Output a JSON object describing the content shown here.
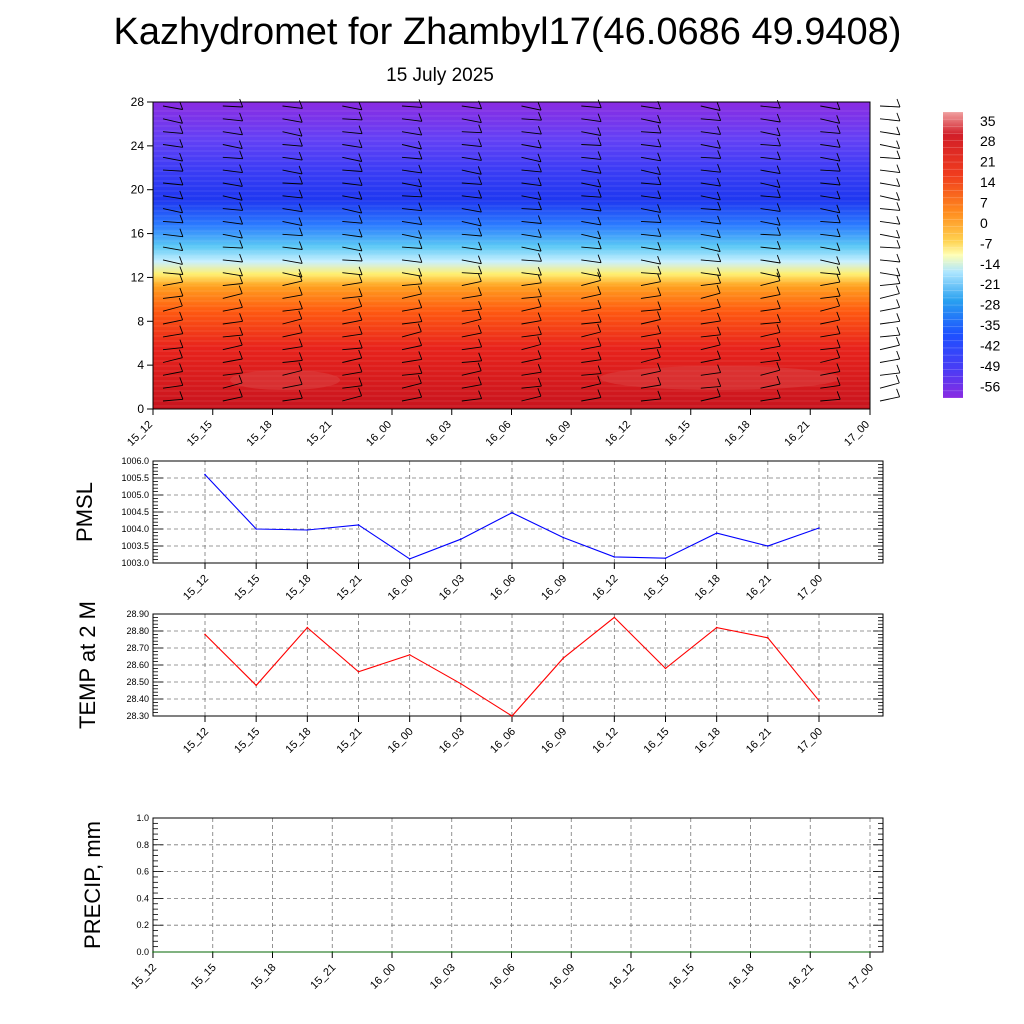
{
  "header": {
    "title": "Kazhydromet for Zhambyl17(46.0686 49.9408)",
    "subtitle": "15 July 2025"
  },
  "colors": {
    "pmsl_line": "#0000ff",
    "temp_line": "#ff0000",
    "precip_line": "#006400",
    "grid": "#777777"
  },
  "chart_data": [
    {
      "type": "heatmap",
      "name": "upper-air temperature and wind",
      "title": "",
      "xlabel": "",
      "ylabel": "",
      "x_ticks": [
        "15_12",
        "15_15",
        "15_18",
        "15_21",
        "16_00",
        "16_03",
        "16_06",
        "16_09",
        "16_12",
        "16_15",
        "16_18",
        "16_21",
        "17_00"
      ],
      "y_ticks": [
        0,
        4,
        8,
        12,
        16,
        20,
        24,
        28
      ],
      "ylim": [
        0,
        28
      ],
      "colorbar": {
        "labels": [
          35,
          28,
          21,
          14,
          7,
          0,
          -7,
          -14,
          -21,
          -28,
          -35,
          -42,
          -49,
          -56
        ],
        "range": [
          -60,
          38
        ]
      },
      "overlay": "wind barbs"
    },
    {
      "type": "line",
      "name": "PMSL",
      "ylabel": "PMSL",
      "categories": [
        "15_12",
        "15_15",
        "15_18",
        "15_21",
        "16_00",
        "16_03",
        "16_06",
        "16_09",
        "16_12",
        "16_15",
        "16_18",
        "16_21",
        "17_00"
      ],
      "values": [
        1005.6,
        1004.0,
        1003.97,
        1004.12,
        1003.12,
        1003.7,
        1004.48,
        1003.75,
        1003.18,
        1003.14,
        1003.88,
        1003.5,
        1004.03
      ],
      "ylim": [
        1003.0,
        1006.0
      ],
      "y_ticks": [
        "1003.0",
        "1003.5",
        "1004.0",
        "1004.5",
        "1005.0",
        "1005.5",
        "1006.0"
      ],
      "grid": true
    },
    {
      "type": "line",
      "name": "TEMP at 2 M",
      "ylabel": "TEMP at 2 M",
      "categories": [
        "15_12",
        "15_15",
        "15_18",
        "15_21",
        "16_00",
        "16_03",
        "16_06",
        "16_09",
        "16_12",
        "16_15",
        "16_18",
        "16_21",
        "17_00"
      ],
      "values": [
        28.78,
        28.48,
        28.82,
        28.56,
        28.66,
        28.49,
        28.3,
        28.64,
        28.88,
        28.58,
        28.82,
        28.76,
        28.39
      ],
      "ylim": [
        28.3,
        28.9
      ],
      "y_ticks": [
        "28.30",
        "28.40",
        "28.50",
        "28.60",
        "28.70",
        "28.80",
        "28.90"
      ],
      "grid": true
    },
    {
      "type": "line",
      "name": "PRECIP, mm",
      "ylabel": "PRECIP, mm",
      "categories": [
        "15_12",
        "15_15",
        "15_18",
        "15_21",
        "16_00",
        "16_03",
        "16_06",
        "16_09",
        "16_12",
        "16_15",
        "16_18",
        "16_21",
        "17_00"
      ],
      "values": [
        0,
        0,
        0,
        0,
        0,
        0,
        0,
        0,
        0,
        0,
        0,
        0,
        0
      ],
      "ylim": [
        0,
        1.0
      ],
      "y_ticks": [
        "0.0",
        "0.2",
        "0.4",
        "0.6",
        "0.8",
        "1.0"
      ],
      "grid": true
    }
  ]
}
